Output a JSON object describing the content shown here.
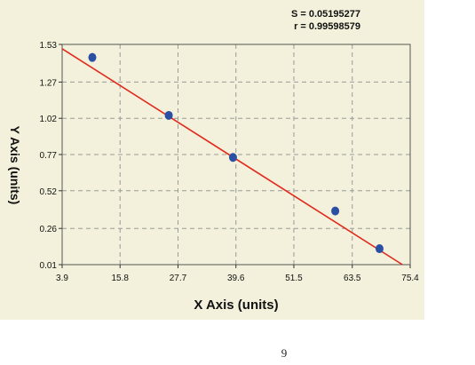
{
  "stats": {
    "s": "S = 0.05195277",
    "r": "r = 0.99598579"
  },
  "chart_data": {
    "type": "scatter",
    "title": "",
    "xlabel": "X Axis (units)",
    "ylabel": "Y Axis (units)",
    "xlim": [
      3.9,
      75.4
    ],
    "ylim": [
      0.01,
      1.53
    ],
    "x_ticks": [
      "3.9",
      "15.8",
      "27.7",
      "39.6",
      "51.5",
      "63.5",
      "75.4"
    ],
    "x_tick_values": [
      3.9,
      15.8,
      27.7,
      39.6,
      51.5,
      63.5,
      75.4
    ],
    "y_ticks": [
      "0.01",
      "0.26",
      "0.52",
      "0.77",
      "1.02",
      "1.27",
      "1.53"
    ],
    "y_tick_values": [
      0.01,
      0.26,
      0.52,
      0.77,
      1.02,
      1.27,
      1.53
    ],
    "grid": true,
    "points": [
      {
        "x": 10.1,
        "y": 1.44
      },
      {
        "x": 25.8,
        "y": 1.04
      },
      {
        "x": 39.0,
        "y": 0.75
      },
      {
        "x": 60.0,
        "y": 0.38
      },
      {
        "x": 69.1,
        "y": 0.12
      }
    ],
    "fit_line": {
      "x": [
        3.9,
        73.8
      ],
      "y": [
        1.5,
        0.01
      ]
    },
    "colors": {
      "points": "#2a4fa3",
      "fit": "#e02a1c",
      "grid": "#9a9a9a",
      "background": "#f3f1db"
    }
  },
  "footer": {
    "page": "9"
  }
}
